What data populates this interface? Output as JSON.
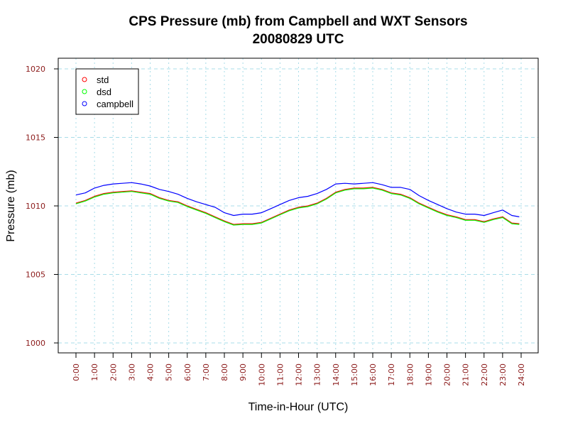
{
  "chart_data": {
    "type": "line",
    "title": "CPS Pressure (mb) from Campbell and WXT Sensors",
    "subtitle": "20080829  UTC",
    "xlabel": "Time-in-Hour (UTC)",
    "ylabel": "Pressure (mb)",
    "xlim": [
      0,
      24
    ],
    "ylim": [
      1000,
      1020
    ],
    "grid": true,
    "legend_position": "top-left",
    "x_ticks": [
      0,
      1,
      2,
      3,
      4,
      5,
      6,
      7,
      8,
      9,
      10,
      11,
      12,
      13,
      14,
      15,
      16,
      17,
      18,
      19,
      20,
      21,
      22,
      23,
      24
    ],
    "x_tick_labels": [
      "0:00",
      "1:00",
      "2:00",
      "3:00",
      "4:00",
      "5:00",
      "6:00",
      "7:00",
      "8:00",
      "9:00",
      "10:00",
      "11:00",
      "12:00",
      "13:00",
      "14:00",
      "15:00",
      "16:00",
      "17:00",
      "18:00",
      "19:00",
      "20:00",
      "21:00",
      "22:00",
      "23:00",
      "24:00"
    ],
    "y_ticks": [
      1000,
      1005,
      1010,
      1015,
      1020
    ],
    "y_tick_labels": [
      "1000",
      "1005",
      "1010",
      "1015",
      "1020"
    ],
    "series": [
      {
        "name": "std",
        "color": "#ff0000",
        "x": [
          0,
          0.5,
          1,
          1.5,
          2,
          2.5,
          3,
          3.5,
          4,
          4.5,
          5,
          5.5,
          6,
          6.5,
          7,
          7.5,
          8,
          8.5,
          9,
          9.5,
          10,
          10.5,
          11,
          11.5,
          12,
          12.5,
          13,
          13.5,
          14,
          14.5,
          15,
          15.5,
          16,
          16.5,
          17,
          17.5,
          18,
          18.5,
          19,
          19.5,
          20,
          20.5,
          21,
          21.5,
          22,
          22.5,
          23,
          23.5,
          23.9
        ],
        "values": [
          1010.2,
          1010.4,
          1010.7,
          1010.9,
          1011.0,
          1011.05,
          1011.1,
          1011.0,
          1010.9,
          1010.6,
          1010.4,
          1010.3,
          1010.0,
          1009.75,
          1009.5,
          1009.2,
          1008.9,
          1008.65,
          1008.7,
          1008.7,
          1008.8,
          1009.1,
          1009.4,
          1009.7,
          1009.9,
          1010.0,
          1010.2,
          1010.55,
          1011.0,
          1011.2,
          1011.3,
          1011.3,
          1011.35,
          1011.2,
          1010.95,
          1010.85,
          1010.6,
          1010.2,
          1009.9,
          1009.6,
          1009.35,
          1009.2,
          1009.0,
          1009.0,
          1008.85,
          1009.05,
          1009.2,
          1008.75,
          1008.7
        ]
      },
      {
        "name": "dsd",
        "color": "#00ff00",
        "x": [
          0,
          0.5,
          1,
          1.5,
          2,
          2.5,
          3,
          3.5,
          4,
          4.5,
          5,
          5.5,
          6,
          6.5,
          7,
          7.5,
          8,
          8.5,
          9,
          9.5,
          10,
          10.5,
          11,
          11.5,
          12,
          12.5,
          13,
          13.5,
          14,
          14.5,
          15,
          15.5,
          16,
          16.5,
          17,
          17.5,
          18,
          18.5,
          19,
          19.5,
          20,
          20.5,
          21,
          21.5,
          22,
          22.5,
          23,
          23.5,
          23.9
        ],
        "values": [
          1010.15,
          1010.35,
          1010.65,
          1010.85,
          1010.95,
          1011.0,
          1011.05,
          1010.95,
          1010.85,
          1010.55,
          1010.35,
          1010.25,
          1009.95,
          1009.7,
          1009.45,
          1009.15,
          1008.85,
          1008.6,
          1008.65,
          1008.65,
          1008.75,
          1009.05,
          1009.35,
          1009.65,
          1009.85,
          1009.95,
          1010.15,
          1010.5,
          1010.95,
          1011.15,
          1011.25,
          1011.25,
          1011.3,
          1011.15,
          1010.9,
          1010.8,
          1010.55,
          1010.15,
          1009.85,
          1009.55,
          1009.3,
          1009.15,
          1008.95,
          1008.95,
          1008.8,
          1009.0,
          1009.15,
          1008.7,
          1008.65
        ]
      },
      {
        "name": "campbell",
        "color": "#0000ff",
        "x": [
          0,
          0.5,
          1,
          1.5,
          2,
          2.5,
          3,
          3.5,
          4,
          4.5,
          5,
          5.5,
          6,
          6.5,
          7,
          7.5,
          8,
          8.5,
          9,
          9.5,
          10,
          10.5,
          11,
          11.5,
          12,
          12.5,
          13,
          13.5,
          14,
          14.5,
          15,
          15.5,
          16,
          16.5,
          17,
          17.5,
          18,
          18.5,
          19,
          19.5,
          20,
          20.5,
          21,
          21.5,
          22,
          22.5,
          23,
          23.5,
          23.9
        ],
        "values": [
          1010.8,
          1010.95,
          1011.3,
          1011.5,
          1011.6,
          1011.65,
          1011.7,
          1011.6,
          1011.45,
          1011.2,
          1011.05,
          1010.85,
          1010.55,
          1010.3,
          1010.1,
          1009.9,
          1009.5,
          1009.3,
          1009.4,
          1009.4,
          1009.5,
          1009.8,
          1010.1,
          1010.4,
          1010.6,
          1010.7,
          1010.9,
          1011.2,
          1011.6,
          1011.65,
          1011.6,
          1011.65,
          1011.7,
          1011.55,
          1011.35,
          1011.35,
          1011.2,
          1010.75,
          1010.4,
          1010.1,
          1009.8,
          1009.55,
          1009.4,
          1009.4,
          1009.3,
          1009.5,
          1009.7,
          1009.3,
          1009.2
        ]
      }
    ]
  }
}
